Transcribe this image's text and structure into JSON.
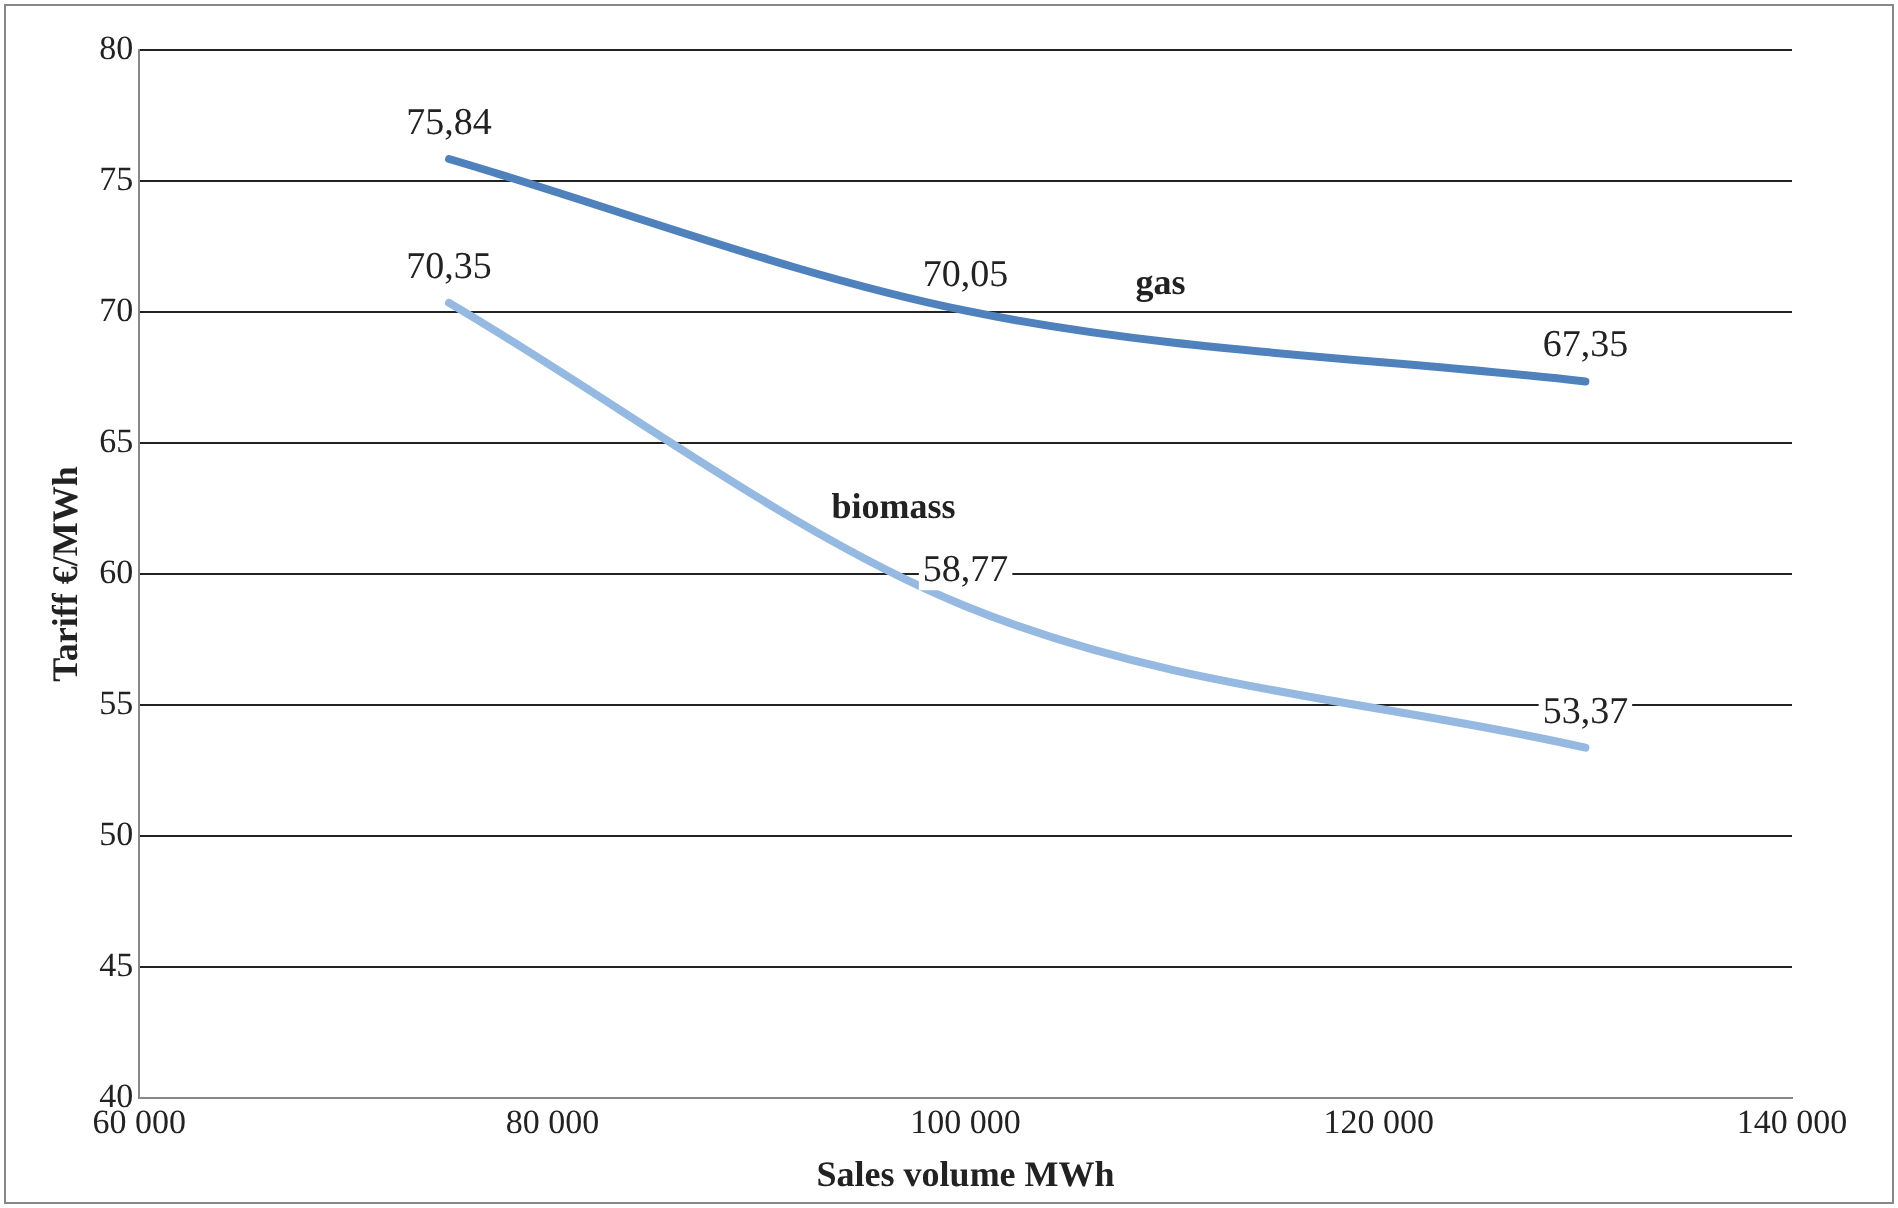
{
  "chart_data": {
    "type": "line",
    "xlabel": "Sales volume MWh",
    "ylabel": "Tariff €/MWh",
    "x": [
      75000,
      100000,
      130000
    ],
    "series": [
      {
        "name": "gas",
        "color": "#4f81bd",
        "values": [
          75.84,
          70.05,
          67.35
        ],
        "value_labels": [
          "75,84",
          "70,05",
          "67,35"
        ]
      },
      {
        "name": "biomass",
        "color": "#95b9e0",
        "values": [
          70.35,
          58.77,
          53.37
        ],
        "value_labels": [
          "70,35",
          "58,77",
          "53,37"
        ]
      }
    ],
    "xlim": [
      60000,
      140000
    ],
    "xticks": [
      {
        "value": 60000,
        "label": "60 000"
      },
      {
        "value": 80000,
        "label": "80 000"
      },
      {
        "value": 100000,
        "label": "100 000"
      },
      {
        "value": 120000,
        "label": "120 000"
      },
      {
        "value": 140000,
        "label": "140 000"
      }
    ],
    "ylim": [
      40,
      80
    ],
    "yticks": [
      40,
      45,
      50,
      55,
      60,
      65,
      70,
      75,
      80
    ],
    "grid": "y",
    "legend": false,
    "marker": "none",
    "line_style": "solid"
  }
}
